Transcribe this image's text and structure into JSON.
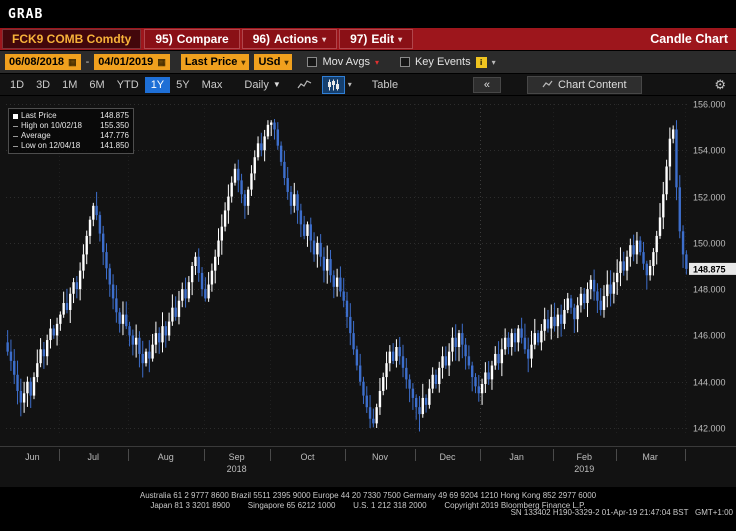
{
  "window": {
    "grab_label": "GRAB"
  },
  "menu_bar": {
    "ticker": "FCK9 COMB Comdty",
    "items": [
      {
        "key": "95)",
        "label": "Compare"
      },
      {
        "key": "96)",
        "label": "Actions"
      },
      {
        "key": "97)",
        "label": "Edit"
      }
    ],
    "right_title": "Candle Chart"
  },
  "settings_bar": {
    "date_from": "06/08/2018",
    "date_separator": "-",
    "date_to": "04/01/2019",
    "price_source": "Last Price",
    "currency": "USd",
    "mov_avgs_label": "Mov Avgs",
    "key_events_label": "Key Events",
    "key_events_icon_glyph": "i"
  },
  "period_bar": {
    "ranges": [
      "1D",
      "3D",
      "1M",
      "6M",
      "YTD",
      "1Y",
      "5Y",
      "Max"
    ],
    "selected_range": "1Y",
    "frequency": "Daily",
    "table_label": "Table",
    "collapse_label": "«",
    "tab_label": "Chart Content"
  },
  "legend": {
    "rows": [
      {
        "label": "Last Price",
        "value": "148.875"
      },
      {
        "label": "High on 10/02/18",
        "value": "155.350"
      },
      {
        "label": "Average",
        "value": "147.776"
      },
      {
        "label": "Low on 12/04/18",
        "value": "141.850"
      }
    ]
  },
  "chart_data": {
    "type": "candlestick",
    "security": "FCK9 COMB Comdty",
    "chart_title": "Candle Chart",
    "frequency": "Daily",
    "range_start": "06/08/2018",
    "range_end": "04/01/2019",
    "months": [
      "Jun",
      "Jul",
      "Aug",
      "Sep",
      "Oct",
      "Nov",
      "Dec",
      "Jan",
      "Feb",
      "Mar"
    ],
    "month_day_counts": [
      16,
      21,
      23,
      20,
      23,
      21,
      20,
      22,
      19,
      21,
      1
    ],
    "year_labels": [
      {
        "label": "2018",
        "month_index": 3
      },
      {
        "label": "2019",
        "month_index": 8
      }
    ],
    "y_axis": {
      "top_value": 156,
      "bottom_value": 142,
      "ticks": [
        142,
        144,
        146,
        148,
        150,
        152,
        154,
        156
      ],
      "tick_labels": [
        "142.000",
        "144.000",
        "146.000",
        "148.000",
        "150.000",
        "152.000",
        "154.000",
        "156.000"
      ]
    },
    "last_price": 148.875,
    "average": 147.776,
    "high": {
      "date": "10/02/18",
      "value": 155.35,
      "index": 81
    },
    "low": {
      "date": "12/04/18",
      "value": 141.85,
      "index": 125
    },
    "closes": [
      145.3,
      144.9,
      144.3,
      143.6,
      143.1,
      143.5,
      144.0,
      143.4,
      144.2,
      144.8,
      145.4,
      145.1,
      145.8,
      146.3,
      146.0,
      146.5,
      146.9,
      147.4,
      147.1,
      147.8,
      148.3,
      148.0,
      148.8,
      149.5,
      150.3,
      151.0,
      151.6,
      151.2,
      150.4,
      149.6,
      148.9,
      148.2,
      147.6,
      147.0,
      146.5,
      146.9,
      146.4,
      146.0,
      145.6,
      145.9,
      145.2,
      144.8,
      145.3,
      145.0,
      145.6,
      146.1,
      145.7,
      146.4,
      146.0,
      146.6,
      147.2,
      146.8,
      147.5,
      148.0,
      147.6,
      148.3,
      149.0,
      149.4,
      148.7,
      148.0,
      147.6,
      148.2,
      148.8,
      149.4,
      150.1,
      150.7,
      151.4,
      152.0,
      152.6,
      153.2,
      152.7,
      152.1,
      151.6,
      152.3,
      153.0,
      153.7,
      154.3,
      154.0,
      154.6,
      155.1,
      155.2,
      154.9,
      154.2,
      153.5,
      152.8,
      152.2,
      151.6,
      152.1,
      151.4,
      150.8,
      150.3,
      150.8,
      150.1,
      149.5,
      150.0,
      149.4,
      148.8,
      149.3,
      148.6,
      148.1,
      148.5,
      147.9,
      147.5,
      146.8,
      146.1,
      145.4,
      144.7,
      144.0,
      143.4,
      142.9,
      142.4,
      142.2,
      142.9,
      143.6,
      144.2,
      144.8,
      145.3,
      144.9,
      145.5,
      145.1,
      144.6,
      144.1,
      143.7,
      143.3,
      142.9,
      142.6,
      143.3,
      143.0,
      143.7,
      144.3,
      143.9,
      144.6,
      145.1,
      144.7,
      145.3,
      145.9,
      145.5,
      146.1,
      145.6,
      145.1,
      144.7,
      144.2,
      143.8,
      143.5,
      143.9,
      144.4,
      144.1,
      144.7,
      145.2,
      144.8,
      145.4,
      145.9,
      145.5,
      146.1,
      145.7,
      146.3,
      145.9,
      145.4,
      145.0,
      145.6,
      146.1,
      145.7,
      146.2,
      146.7,
      146.3,
      146.8,
      146.4,
      146.9,
      146.5,
      147.1,
      147.6,
      147.2,
      146.7,
      147.3,
      147.8,
      147.4,
      148.0,
      148.4,
      147.9,
      147.5,
      147.1,
      147.7,
      148.2,
      147.8,
      148.3,
      148.7,
      149.2,
      148.8,
      149.4,
      149.9,
      149.5,
      150.1,
      149.6,
      149.1,
      148.6,
      149.0,
      149.6,
      150.3,
      151.1,
      152.1,
      153.3,
      154.5,
      154.9,
      152.4,
      150.5,
      149.5,
      148.875
    ],
    "colors": {
      "up": "#ffffff",
      "down": "#3d6ecb",
      "grid": "#2d2d2d",
      "month_grid": "#202020",
      "year_grid": "#3c3c3c",
      "axis_text": "#bdbdbd",
      "badge_bg": "#e8e8e8",
      "badge_text": "#000000",
      "background": "#121212"
    }
  },
  "footer": {
    "line1": "Australia 61 2 9777 8600 Brazil 5511 2395 9000 Europe 44 20 7330 7500 Germany 49 69 9204 1210 Hong Kong 852 2977 6000",
    "line2": "Japan 81 3 3201 8900        Singapore 65 6212 1000        U.S. 1 212 318 2000        Copyright 2019 Bloomberg Finance L.P.",
    "line3": "SN 133402 H190-3329-2 01-Apr-19 21:47:04 BST   GMT+1:00"
  }
}
